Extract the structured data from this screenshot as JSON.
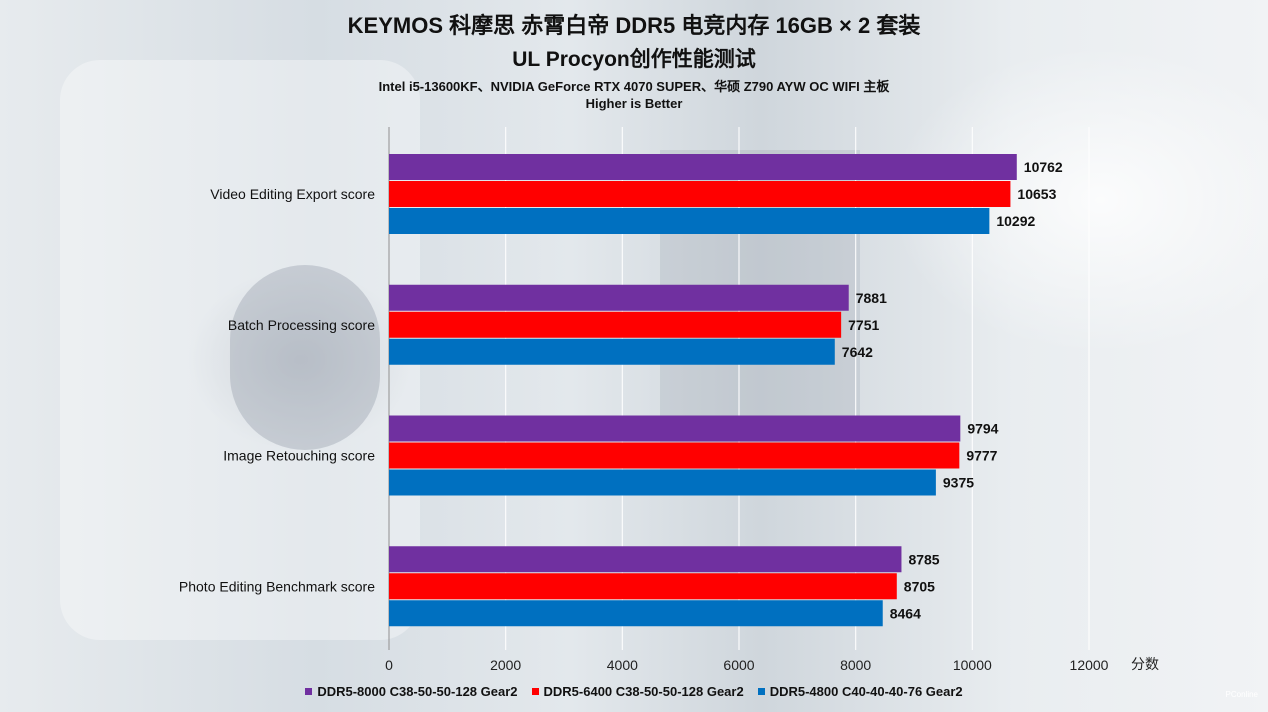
{
  "title": "KEYMOS 科摩思 赤霄白帝 DDR5 电竞内存 16GB × 2 套装",
  "subtitle": "UL Procyon创作性能测试",
  "spec": "Intel i5-13600KF、NVIDIA GeForce RTX 4070 SUPER、华硕 Z790 AYW OC WIFI 主板",
  "note": "Higher is Better",
  "watermark": "PConline",
  "chart_data": {
    "type": "bar",
    "orientation": "horizontal",
    "categories": [
      "Video Editing Export score",
      "Batch Processing score",
      "Image Retouching score",
      "Photo Editing Benchmark score"
    ],
    "series": [
      {
        "name": "DDR5-8000 C38-50-50-128 Gear2",
        "color": "#7030a0",
        "values": [
          10762,
          7881,
          9794,
          8785
        ]
      },
      {
        "name": "DDR5-6400 C38-50-50-128 Gear2",
        "color": "#ff0000",
        "values": [
          10653,
          7751,
          9777,
          8705
        ]
      },
      {
        "name": "DDR5-4800 C40-40-40-76 Gear2",
        "color": "#0070c0",
        "values": [
          10292,
          7642,
          9375,
          8464
        ]
      }
    ],
    "xlabel": "分数",
    "xlim": [
      0,
      12000
    ],
    "xticks": [
      0,
      2000,
      4000,
      6000,
      8000,
      10000,
      12000
    ],
    "grid": true,
    "legend": "bottom"
  }
}
